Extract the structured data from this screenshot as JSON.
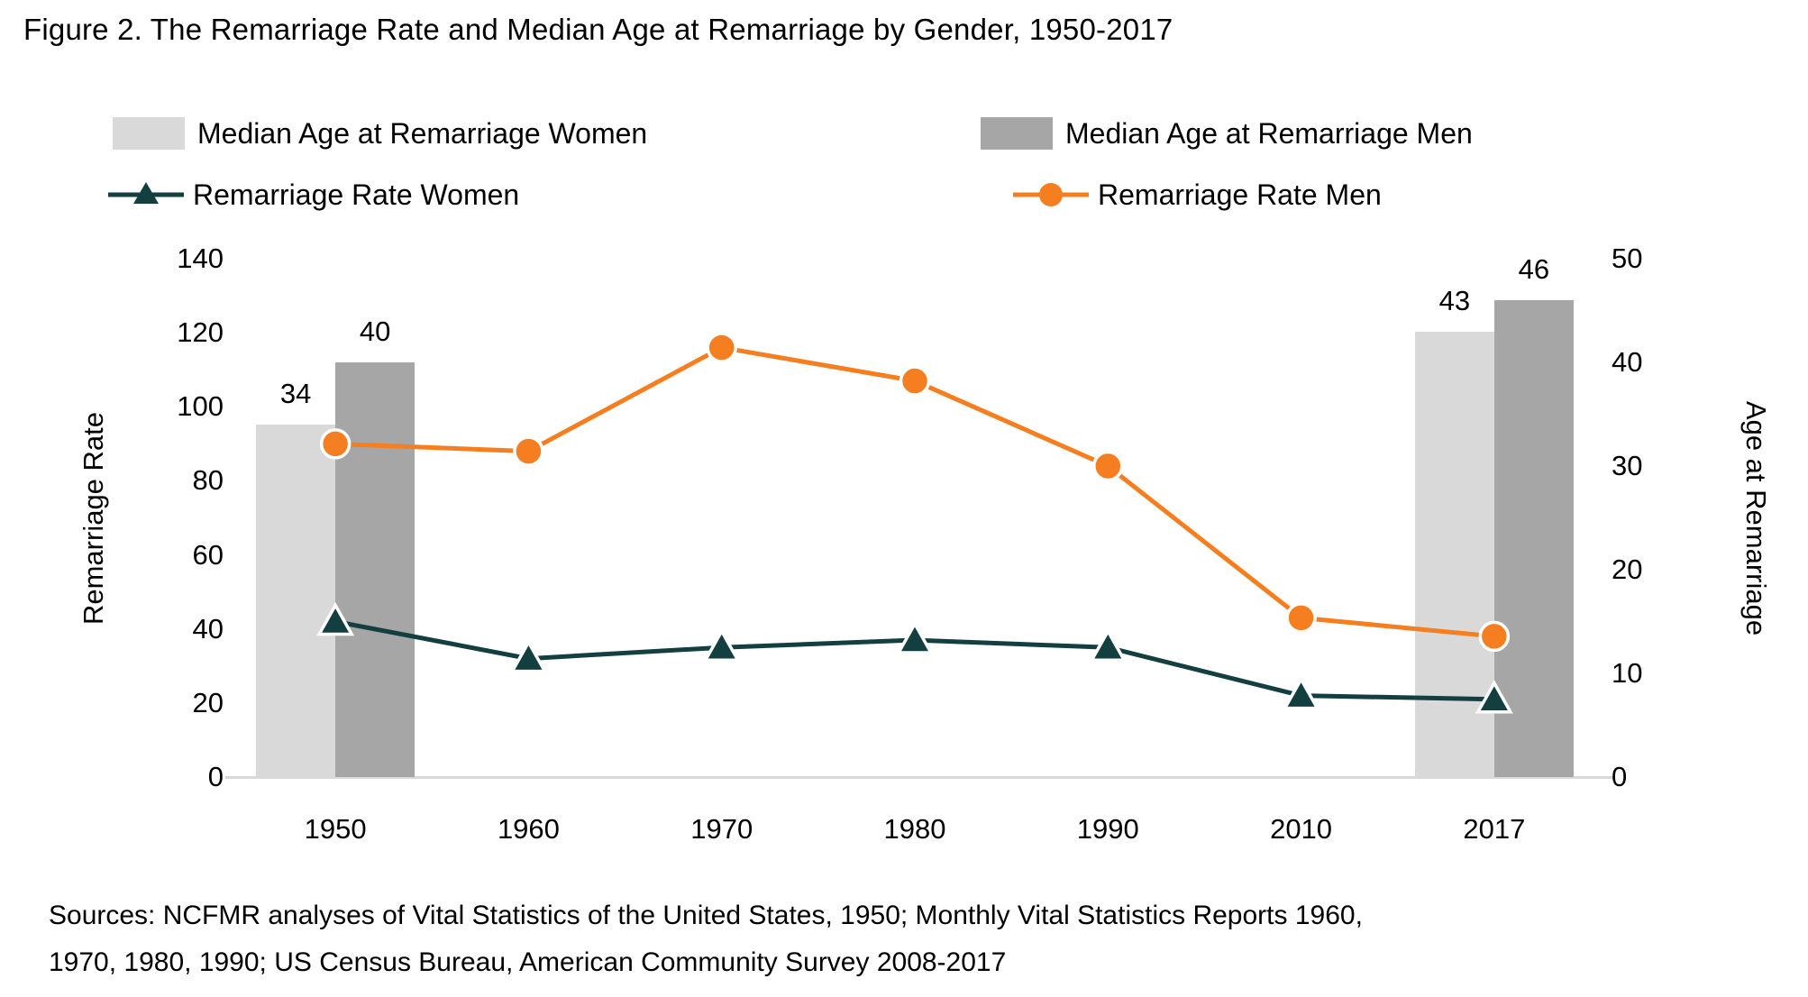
{
  "page": {
    "title": "Figure 2. The Remarriage Rate and Median Age at Remarriage by Gender, 1950-2017"
  },
  "sources": {
    "line1": "Sources: NCFMR analyses of Vital Statistics of the United States, 1950; Monthly Vital Statistics Reports 1960,",
    "line2": "1970, 1980, 1990; US Census Bureau, American Community Survey 2008-2017"
  },
  "colors": {
    "bar_women": "#d9d9d9",
    "bar_men": "#a6a6a6",
    "line_women": "#143f41",
    "line_men": "#f57e20",
    "axis_line": "#d9d9d9",
    "text": "#000000"
  },
  "chart_data": {
    "type": "combo-bar-line",
    "categories": [
      "1950",
      "1960",
      "1970",
      "1980",
      "1990",
      "2010",
      "2017"
    ],
    "bar_series": [
      {
        "name": "Median Age at Remarriage Women",
        "color": "#d9d9d9",
        "axis": "right",
        "values": [
          34,
          null,
          null,
          null,
          null,
          null,
          43
        ],
        "data_labels": [
          "34",
          null,
          null,
          null,
          null,
          null,
          "43"
        ]
      },
      {
        "name": "Median Age at Remarriage Men",
        "color": "#a6a6a6",
        "axis": "right",
        "values": [
          40,
          null,
          null,
          null,
          null,
          null,
          46
        ],
        "data_labels": [
          "40",
          null,
          null,
          null,
          null,
          null,
          "46"
        ]
      }
    ],
    "line_series": [
      {
        "name": "Remarriage Rate Women",
        "color": "#143f41",
        "marker": "triangle",
        "axis": "left",
        "values": [
          42,
          32,
          35,
          37,
          35,
          22,
          21
        ]
      },
      {
        "name": "Remarriage Rate Men",
        "color": "#f57e20",
        "marker": "circle",
        "axis": "left",
        "values": [
          90,
          88,
          116,
          107,
          84,
          43,
          38
        ]
      }
    ],
    "left_axis": {
      "title": "Remarriage Rate",
      "min": 0,
      "max": 140,
      "ticks": [
        0,
        20,
        40,
        60,
        80,
        100,
        120,
        140
      ]
    },
    "right_axis": {
      "title": "Age at Remarriage",
      "min": 0,
      "max": 50,
      "ticks": [
        0,
        10,
        20,
        30,
        40,
        50
      ]
    },
    "grid": false,
    "legend_position": "top"
  }
}
